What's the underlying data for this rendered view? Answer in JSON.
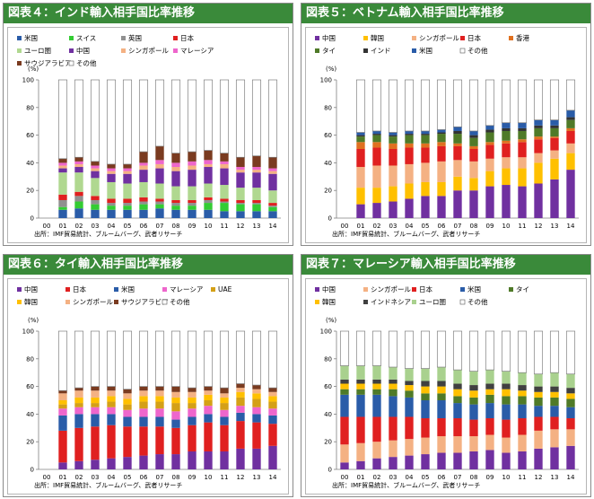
{
  "source_note": "出所：IMF貿易統計、ブルームバーグ、武者リサーチ",
  "colors": {
    "米国": "#2a5ca8",
    "スイス": "#33cc33",
    "英国": "#909090",
    "日本": "#e02020",
    "ユーロ圏": "#b0d890",
    "中国": "#7030a0",
    "シンガポール": "#f4b183",
    "マレーシア": "#ee66cc",
    "サウジアラビア": "#7a3b20",
    "その他": "#ffffff",
    "韓国": "#ffc000",
    "香港": "#e07020",
    "タイ": "#4f7a28",
    "インド": "#333333",
    "UAE": "#d4a017",
    "インドネシア": "#404040",
    "ユーロ圏2": "#a9d18e"
  },
  "chart_data": [
    {
      "type": "bar",
      "stacked": true,
      "title": "図表４：インド輸入相手国比率推移",
      "ylabel": "(%)",
      "ylim": [
        0,
        100
      ],
      "yticks": [
        0,
        20,
        40,
        60,
        80,
        100
      ],
      "categories": [
        "00",
        "01",
        "02",
        "03",
        "04",
        "05",
        "06",
        "07",
        "08",
        "09",
        "10",
        "11",
        "12",
        "13",
        "14"
      ],
      "legend": [
        [
          "米国",
          "スイス",
          "英国",
          "日本"
        ],
        [
          "ユーロ圏",
          "中国",
          "シンガポール",
          "マレーシア"
        ],
        [
          "サウジアラビア",
          "その他"
        ]
      ],
      "series": [
        {
          "name": "米国",
          "color_key": "米国",
          "values": [
            null,
            6,
            7,
            6,
            6,
            6,
            6,
            7,
            6,
            6,
            6,
            5,
            5,
            5,
            5
          ]
        },
        {
          "name": "スイス",
          "color_key": "スイス",
          "values": [
            null,
            2,
            5,
            4,
            3,
            3,
            4,
            3,
            3,
            3,
            5,
            6,
            5,
            5,
            3
          ]
        },
        {
          "name": "英国",
          "color_key": "英国",
          "values": [
            null,
            5,
            4,
            3,
            2,
            2,
            2,
            2,
            2,
            2,
            2,
            1,
            1,
            1,
            1
          ]
        },
        {
          "name": "日本",
          "color_key": "日本",
          "values": [
            null,
            4,
            3,
            3,
            3,
            3,
            3,
            2,
            2,
            2,
            2,
            2,
            2,
            2,
            2
          ]
        },
        {
          "name": "ユーロ圏",
          "color_key": "ユーロ圏",
          "values": [
            null,
            16,
            14,
            13,
            12,
            11,
            11,
            11,
            10,
            10,
            10,
            10,
            9,
            9,
            9
          ]
        },
        {
          "name": "中国",
          "color_key": "中国",
          "values": [
            null,
            3,
            4,
            5,
            6,
            7,
            9,
            11,
            11,
            12,
            12,
            12,
            11,
            11,
            12
          ]
        },
        {
          "name": "シンガポール",
          "color_key": "シンガポール",
          "values": [
            null,
            2,
            2,
            2,
            2,
            2,
            3,
            3,
            3,
            3,
            2,
            3,
            2,
            2,
            2
          ]
        },
        {
          "name": "マレーシア",
          "color_key": "マレーシア",
          "values": [
            null,
            2,
            2,
            2,
            2,
            2,
            2,
            3,
            3,
            3,
            3,
            2,
            2,
            2,
            2
          ]
        },
        {
          "name": "サウジアラビア",
          "color_key": "サウジアラビア",
          "values": [
            null,
            3,
            3,
            3,
            3,
            3,
            8,
            10,
            7,
            7,
            7,
            6,
            7,
            8,
            8
          ]
        },
        {
          "name": "その他",
          "color_key": "その他",
          "values": [
            null,
            57,
            56,
            59,
            61,
            61,
            52,
            48,
            53,
            52,
            51,
            53,
            56,
            55,
            56
          ]
        }
      ]
    },
    {
      "type": "bar",
      "stacked": true,
      "title": "図表５：ベトナム輸入相手国比率推移",
      "ylabel": "(%)",
      "ylim": [
        0,
        100
      ],
      "yticks": [
        0,
        20,
        40,
        60,
        80,
        100
      ],
      "categories": [
        "00",
        "01",
        "02",
        "03",
        "04",
        "05",
        "06",
        "07",
        "08",
        "09",
        "10",
        "11",
        "12",
        "13",
        "14"
      ],
      "legend": [
        [
          "中国",
          "韓国",
          "シンガポール",
          "日本",
          "香港"
        ],
        [
          "タイ",
          "インド",
          "米国",
          "その他"
        ]
      ],
      "series": [
        {
          "name": "中国",
          "color_key": "中国",
          "values": [
            null,
            10,
            11,
            12,
            14,
            16,
            16,
            20,
            20,
            23,
            24,
            23,
            25,
            28,
            35
          ]
        },
        {
          "name": "韓国",
          "color_key": "韓国",
          "values": [
            null,
            12,
            11,
            11,
            11,
            10,
            10,
            10,
            9,
            11,
            12,
            13,
            15,
            15,
            12
          ]
        },
        {
          "name": "シンガポール",
          "color_key": "シンガポール",
          "values": [
            null,
            15,
            16,
            15,
            14,
            14,
            15,
            12,
            12,
            9,
            8,
            8,
            7,
            6,
            7
          ]
        },
        {
          "name": "日本",
          "color_key": "日本",
          "values": [
            null,
            13,
            13,
            12,
            12,
            11,
            11,
            10,
            9,
            10,
            10,
            11,
            10,
            9,
            9
          ]
        },
        {
          "name": "香港",
          "color_key": "香港",
          "values": [
            null,
            5,
            4,
            4,
            3,
            3,
            3,
            2,
            2,
            2,
            2,
            2,
            2,
            1,
            2
          ]
        },
        {
          "name": "タイ",
          "color_key": "タイ",
          "values": [
            null,
            4,
            5,
            5,
            6,
            6,
            6,
            7,
            6,
            7,
            7,
            6,
            6,
            6,
            6
          ]
        },
        {
          "name": "インド",
          "color_key": "インド",
          "values": [
            null,
            1,
            1,
            1,
            1,
            1,
            1,
            2,
            2,
            2,
            2,
            2,
            2,
            2,
            2
          ]
        },
        {
          "name": "米国",
          "color_key": "米国",
          "values": [
            null,
            2,
            2,
            2,
            2,
            2,
            2,
            3,
            3,
            3,
            4,
            4,
            4,
            4,
            5
          ]
        },
        {
          "name": "その他",
          "color_key": "その他",
          "values": [
            null,
            38,
            37,
            38,
            37,
            37,
            36,
            34,
            37,
            33,
            31,
            31,
            29,
            29,
            22
          ]
        }
      ]
    },
    {
      "type": "bar",
      "stacked": true,
      "title": "図表６：タイ輸入相手国比率推移",
      "ylabel": "(%)",
      "ylim": [
        0,
        100
      ],
      "yticks": [
        0,
        20,
        40,
        60,
        80,
        100
      ],
      "categories": [
        "00",
        "01",
        "02",
        "03",
        "04",
        "05",
        "06",
        "07",
        "08",
        "09",
        "10",
        "11",
        "12",
        "13",
        "14"
      ],
      "legend": [
        [
          "中国",
          "日本",
          "米国",
          "マレーシア",
          "UAE"
        ],
        [
          "韓国",
          "シンガポール",
          "サウジアラビア",
          "その他"
        ]
      ],
      "series": [
        {
          "name": "中国",
          "color_key": "中国",
          "values": [
            null,
            5,
            6,
            7,
            8,
            9,
            10,
            11,
            11,
            13,
            13,
            13,
            15,
            15,
            17
          ]
        },
        {
          "name": "日本",
          "color_key": "日本",
          "values": [
            null,
            23,
            24,
            24,
            24,
            22,
            21,
            20,
            19,
            19,
            21,
            19,
            20,
            19,
            16
          ]
        },
        {
          "name": "米国",
          "color_key": "米国",
          "values": [
            null,
            11,
            10,
            9,
            8,
            7,
            7,
            7,
            6,
            6,
            6,
            6,
            6,
            6,
            6
          ]
        },
        {
          "name": "マレーシア",
          "color_key": "マレーシア",
          "values": [
            null,
            5,
            5,
            5,
            5,
            5,
            6,
            6,
            6,
            6,
            6,
            5,
            5,
            5,
            5
          ]
        },
        {
          "name": "UAE",
          "color_key": "UAE",
          "values": [
            null,
            3,
            3,
            3,
            4,
            4,
            5,
            5,
            6,
            4,
            4,
            5,
            6,
            6,
            5
          ]
        },
        {
          "name": "韓国",
          "color_key": "韓国",
          "values": [
            null,
            3,
            4,
            4,
            4,
            4,
            4,
            4,
            4,
            4,
            4,
            4,
            4,
            4,
            4
          ]
        },
        {
          "name": "シンガポール",
          "color_key": "シンガポール",
          "values": [
            null,
            5,
            5,
            5,
            4,
            4,
            4,
            4,
            4,
            4,
            3,
            3,
            3,
            3,
            3
          ]
        },
        {
          "name": "サウジアラビア",
          "color_key": "サウジアラビア",
          "values": [
            null,
            2,
            2,
            3,
            3,
            3,
            3,
            3,
            4,
            3,
            3,
            4,
            3,
            3,
            3
          ]
        },
        {
          "name": "その他",
          "color_key": "その他",
          "values": [
            null,
            43,
            41,
            40,
            40,
            42,
            40,
            40,
            40,
            41,
            40,
            41,
            38,
            39,
            41
          ]
        }
      ]
    },
    {
      "type": "bar",
      "stacked": true,
      "title": "図表７：マレーシア輸入相手国比率推移",
      "ylabel": "(%)",
      "ylim": [
        0,
        100
      ],
      "yticks": [
        0,
        20,
        40,
        60,
        80,
        100
      ],
      "categories": [
        "00",
        "01",
        "02",
        "03",
        "04",
        "05",
        "06",
        "07",
        "08",
        "09",
        "10",
        "11",
        "12",
        "13",
        "14"
      ],
      "legend": [
        [
          "中国",
          "シンガポール",
          "日本",
          "米国",
          "タイ"
        ],
        [
          "韓国",
          "インドネシア",
          "ユーロ圏",
          "その他"
        ]
      ],
      "series": [
        {
          "name": "中国",
          "color_key": "中国",
          "values": [
            5,
            6,
            8,
            9,
            10,
            11,
            12,
            12,
            13,
            14,
            12,
            13,
            15,
            16,
            17
          ]
        },
        {
          "name": "シンガポール",
          "color_key": "シンガポール",
          "values": [
            13,
            13,
            12,
            12,
            12,
            12,
            12,
            12,
            11,
            11,
            11,
            12,
            13,
            13,
            12
          ]
        },
        {
          "name": "日本",
          "color_key": "日本",
          "values": [
            20,
            19,
            18,
            17,
            16,
            14,
            13,
            13,
            12,
            12,
            13,
            12,
            10,
            9,
            8
          ]
        },
        {
          "name": "米国",
          "color_key": "米国",
          "values": [
            16,
            16,
            16,
            15,
            14,
            13,
            13,
            11,
            11,
            11,
            11,
            10,
            8,
            8,
            8
          ]
        },
        {
          "name": "タイ",
          "color_key": "タイ",
          "values": [
            4,
            4,
            4,
            5,
            5,
            5,
            5,
            5,
            5,
            6,
            6,
            6,
            6,
            6,
            6
          ]
        },
        {
          "name": "韓国",
          "color_key": "韓国",
          "values": [
            4,
            4,
            4,
            4,
            4,
            5,
            5,
            5,
            5,
            4,
            5,
            4,
            4,
            4,
            4
          ]
        },
        {
          "name": "インドネシア",
          "color_key": "インドネシア",
          "values": [
            3,
            3,
            3,
            3,
            3,
            4,
            4,
            4,
            4,
            4,
            4,
            4,
            4,
            4,
            4
          ]
        },
        {
          "name": "ユーロ圏",
          "color_key": "ユーロ圏2",
          "values": [
            10,
            10,
            10,
            9,
            9,
            9,
            10,
            10,
            10,
            10,
            9,
            9,
            9,
            10,
            10
          ]
        },
        {
          "name": "その他",
          "color_key": "その他",
          "values": [
            25,
            25,
            25,
            26,
            27,
            27,
            26,
            28,
            29,
            28,
            29,
            30,
            31,
            30,
            31
          ]
        }
      ]
    }
  ]
}
